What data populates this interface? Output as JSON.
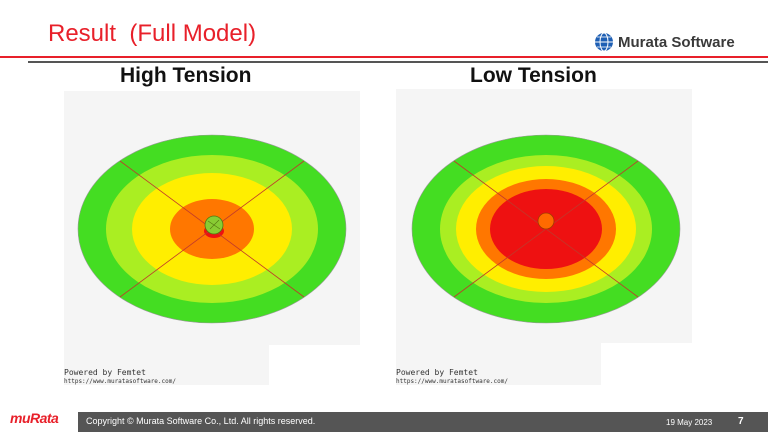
{
  "slide": {
    "title": "Result  (Full Model)",
    "brand": "Murata Software",
    "footer_logo": "muRata",
    "copyright": "Copyright © Murata Software Co., Ltd. All rights reserved.",
    "date": "19 May 2023",
    "page_number": "7"
  },
  "panels": [
    {
      "heading": "High Tension",
      "powered_by": "Powered by Femtet",
      "url": "https://www.muratasoftware.com/"
    },
    {
      "heading": "Low Tension",
      "powered_by": "Powered by Femtet",
      "url": "https://www.muratasoftware.com/"
    }
  ],
  "colors": {
    "accent": "#e8202a",
    "band_green": "#44dd22",
    "band_lightgreen": "#aaee22",
    "band_yellow": "#ffee00",
    "band_orange": "#ff7700",
    "band_red": "#ee1111"
  }
}
